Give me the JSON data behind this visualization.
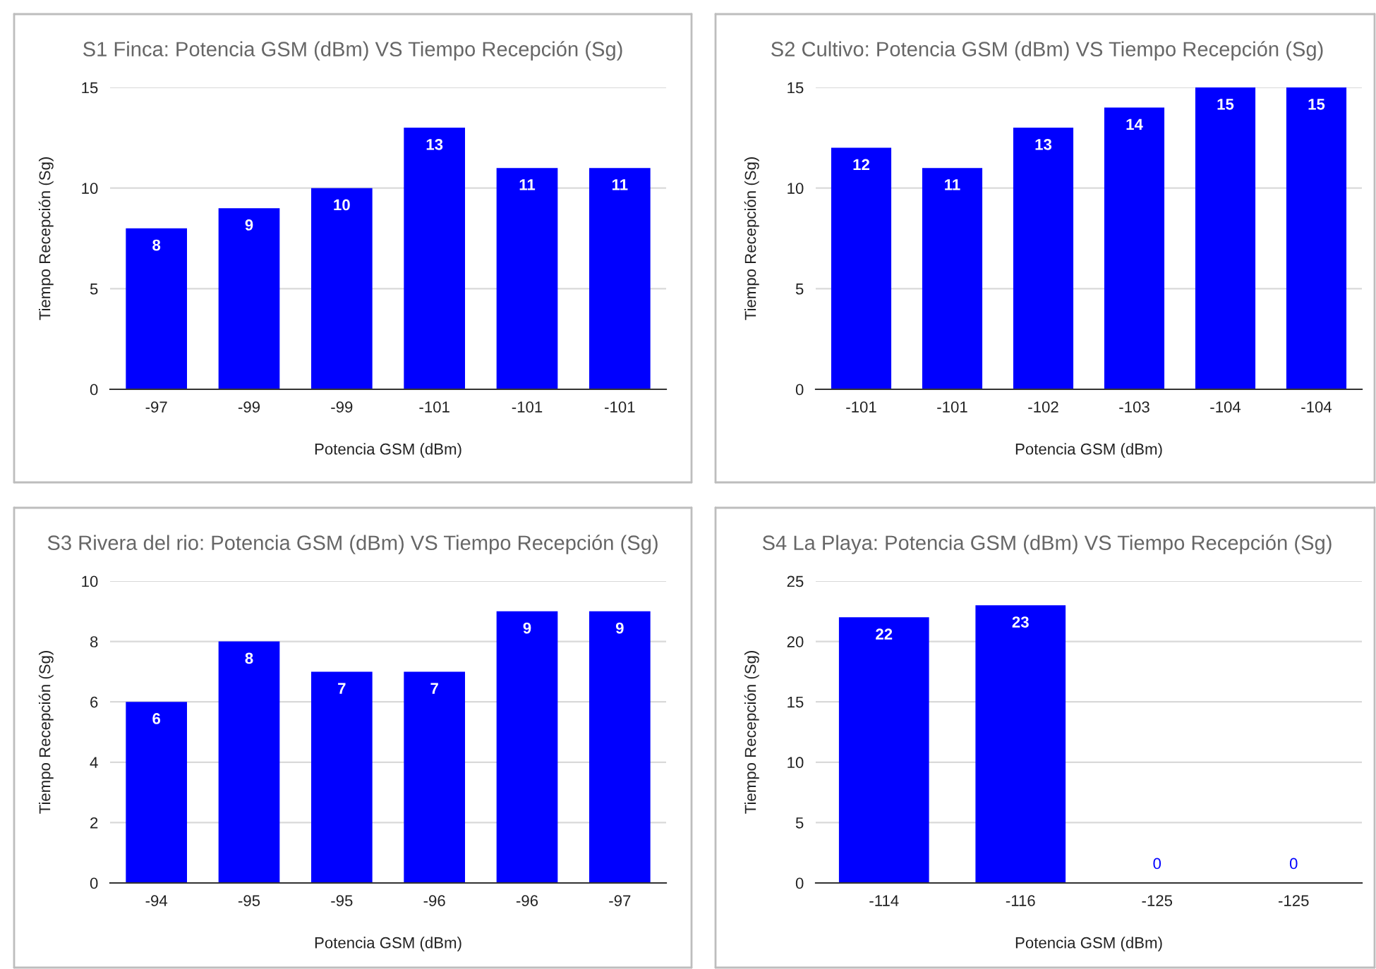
{
  "chart_data": [
    {
      "type": "bar",
      "title": "S1 Finca: Potencia GSM (dBm) VS Tiempo Recepción (Sg)",
      "xlabel": "Potencia GSM (dBm)",
      "ylabel": "Tiempo Recepción (Sg)",
      "categories": [
        "-97",
        "-99",
        "-99",
        "-101",
        "-101",
        "-101"
      ],
      "values": [
        8,
        9,
        10,
        13,
        11,
        11
      ],
      "color": "#0000ff",
      "ylim": [
        0,
        15
      ],
      "yticks": [
        0,
        5,
        10,
        15
      ],
      "grid": "y",
      "data_labels": true
    },
    {
      "type": "bar",
      "title": "S2 Cultivo: Potencia GSM (dBm) VS Tiempo Recepción (Sg)",
      "xlabel": "Potencia GSM (dBm)",
      "ylabel": "Tiempo Recepción (Sg)",
      "categories": [
        "-101",
        "-101",
        "-102",
        "-103",
        "-104",
        "-104"
      ],
      "values": [
        12,
        11,
        13,
        14,
        15,
        15
      ],
      "color": "#0000ff",
      "ylim": [
        0,
        15
      ],
      "yticks": [
        0,
        5,
        10,
        15
      ],
      "grid": "y",
      "data_labels": true
    },
    {
      "type": "bar",
      "title": "S3 Rivera del rio: Potencia GSM (dBm) VS Tiempo Recepción (Sg)",
      "xlabel": "Potencia GSM (dBm)",
      "ylabel": "Tiempo Recepción (Sg)",
      "categories": [
        "-94",
        "-95",
        "-95",
        "-96",
        "-96",
        "-97"
      ],
      "values": [
        6,
        8,
        7,
        7,
        9,
        9
      ],
      "color": "#0000ff",
      "ylim": [
        0,
        10
      ],
      "yticks": [
        0,
        2,
        4,
        6,
        8,
        10
      ],
      "grid": "y",
      "data_labels": true
    },
    {
      "type": "bar",
      "title": "S4 La Playa: Potencia GSM (dBm) VS Tiempo Recepción (Sg)",
      "xlabel": "Potencia GSM (dBm)",
      "ylabel": "Tiempo Recepción (Sg)",
      "categories": [
        "-114",
        "-116",
        "-125",
        "-125"
      ],
      "values": [
        22,
        23,
        0,
        0
      ],
      "color": "#0000ff",
      "ylim": [
        0,
        25
      ],
      "yticks": [
        0,
        5,
        10,
        15,
        20,
        25
      ],
      "grid": "y",
      "data_labels": true
    }
  ]
}
